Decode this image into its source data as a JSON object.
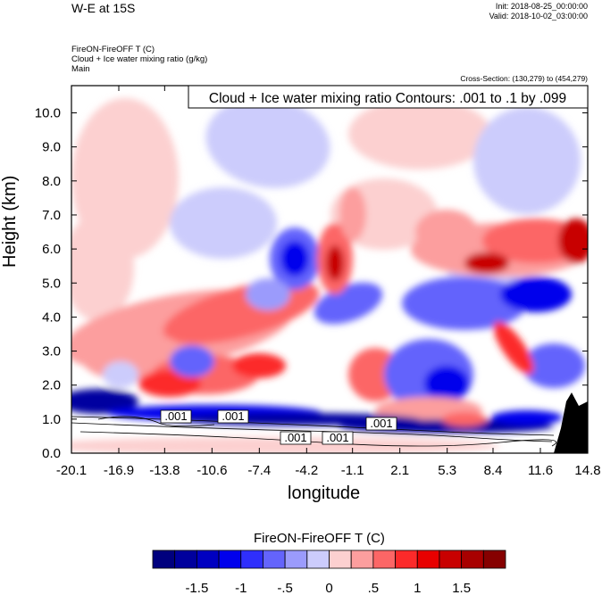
{
  "header": {
    "title": "W-E at 15S",
    "init": "Init: 2018-08-25_00:00:00",
    "valid": "Valid: 2018-10-02_03:00:00",
    "field_line1": "FireON-FireOFF T   (C)",
    "field_line2": "Cloud + Ice water mixing ratio   (g/kg)",
    "field_line3": "Main",
    "cross_section": "Cross-Section: (130,279) to (454,279)"
  },
  "chart_data": {
    "type": "heatmap",
    "title": "W-E at 15S",
    "xlabel": "longitude",
    "ylabel": "Height (km)",
    "x_ticks": [
      "-20.1",
      "-16.9",
      "-13.8",
      "-10.6",
      "-7.4",
      "-4.2",
      "-1.1",
      "2.1",
      "5.3",
      "8.4",
      "11.6",
      "14.8"
    ],
    "y_ticks": [
      "0.0",
      "1.0",
      "2.0",
      "3.0",
      "4.0",
      "5.0",
      "6.0",
      "7.0",
      "8.0",
      "9.0",
      "10.0"
    ],
    "xlim": [
      -20.1,
      14.8
    ],
    "ylim": [
      0,
      10.8
    ],
    "contour_legend": "Cloud + Ice water mixing ratio Contours: .001 to .1 by .099",
    "contour_labels": [
      ".001",
      ".001",
      ".001",
      ".001",
      ".001"
    ],
    "colorbar": {
      "title": "FireON-FireOFF T  (C)",
      "tick_labels": [
        "-1.5",
        "-1",
        "-.5",
        "0",
        ".5",
        "1",
        "1.5"
      ],
      "colors": [
        "#00007e",
        "#00009d",
        "#0000c1",
        "#0000ec",
        "#2f2ffc",
        "#6464fc",
        "#9b9bfc",
        "#ccccfc",
        "#fcd0d0",
        "#fc9e9e",
        "#fc6666",
        "#fc2a2a",
        "#e80000",
        "#c80000",
        "#a80000",
        "#860000"
      ]
    }
  }
}
